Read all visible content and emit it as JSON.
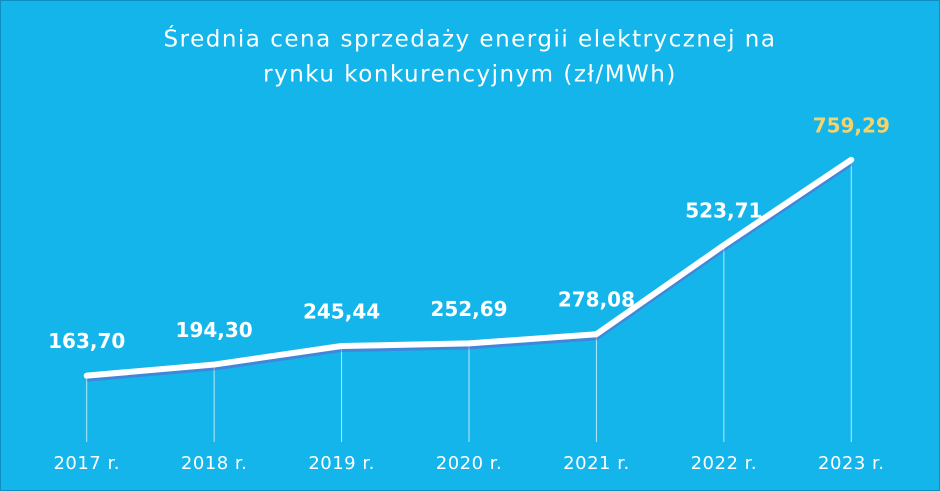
{
  "chart_data": {
    "type": "line",
    "title": [
      "Średnia cena sprzedaży energii elektrycznej na",
      "rynku konkurencyjnym (zł/MWh)"
    ],
    "categories": [
      "2017 r.",
      "2018 r.",
      "2019 r.",
      "2020 r.",
      "2021 r.",
      "2022 r.",
      "2023 r."
    ],
    "values": [
      163.7,
      194.3,
      245.44,
      252.69,
      278.08,
      523.71,
      759.29
    ],
    "value_labels": [
      "163,70",
      "194,30",
      "245,44",
      "252,69",
      "278,08",
      "523,71",
      "759,29"
    ],
    "value_label_colors": [
      "#ffffff",
      "#ffffff",
      "#ffffff",
      "#ffffff",
      "#ffffff",
      "#ffffff",
      "#f3d46c"
    ],
    "color": "#ffffff",
    "background": "#13b5ea",
    "ylim": [
      0,
      800
    ]
  }
}
